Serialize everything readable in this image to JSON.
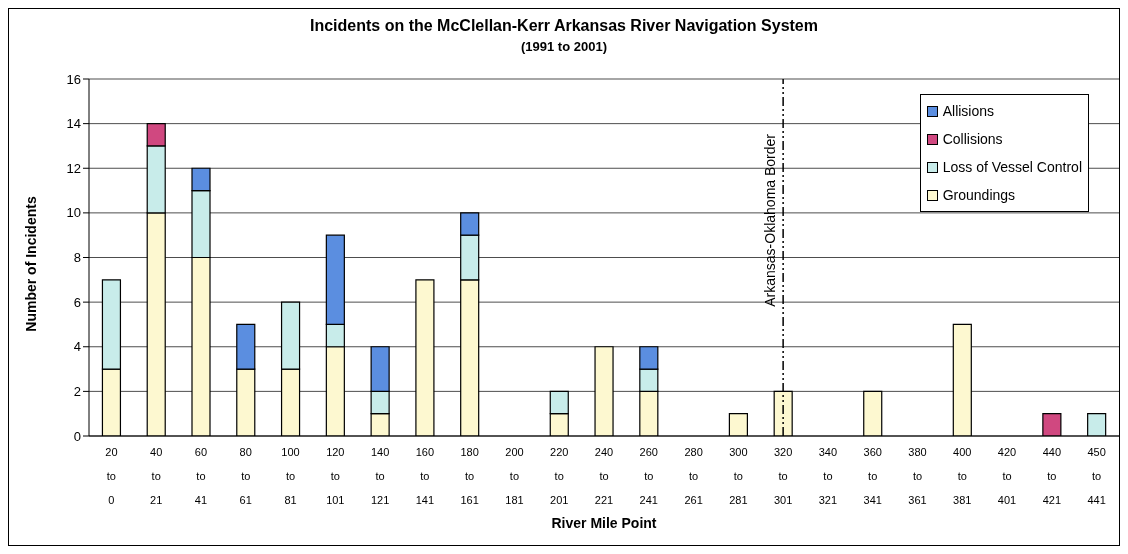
{
  "chart_data": {
    "type": "bar",
    "title": "Incidents on the McClellan-Kerr Arkansas River Navigation System",
    "subtitle": "(1991 to 2001)",
    "xlabel": "River Mile Point",
    "ylabel": "Number of Incidents",
    "categories": [
      "20 to 0",
      "40 to 21",
      "60 to 41",
      "80 to 61",
      "100 to 81",
      "120 to 101",
      "140 to 121",
      "160 to 141",
      "180 to 161",
      "200 to 181",
      "220 to 201",
      "240 to 221",
      "260 to 241",
      "280 to 261",
      "300 to 281",
      "320 to 301",
      "340 to 321",
      "360 to 341",
      "380 to 361",
      "400 to 381",
      "420 to 401",
      "440 to 421",
      "450 to 441"
    ],
    "series": [
      {
        "name": "Groundings",
        "color": "#fdf8d0",
        "values": [
          3,
          10,
          8,
          3,
          3,
          4,
          1,
          7,
          7,
          0,
          1,
          4,
          2,
          0,
          1,
          2,
          0,
          2,
          0,
          5,
          0,
          0,
          0
        ]
      },
      {
        "name": "Loss of Vessel Control",
        "color": "#c8ecea",
        "values": [
          4,
          3,
          3,
          0,
          3,
          1,
          1,
          0,
          2,
          0,
          1,
          0,
          1,
          0,
          0,
          0,
          0,
          0,
          0,
          0,
          0,
          0,
          1
        ]
      },
      {
        "name": "Collisions",
        "color": "#d04880",
        "values": [
          0,
          1,
          0,
          0,
          0,
          0,
          0,
          0,
          0,
          0,
          0,
          0,
          0,
          0,
          0,
          0,
          0,
          0,
          0,
          0,
          0,
          1,
          0
        ]
      },
      {
        "name": "Allisions",
        "color": "#5b8ee0",
        "values": [
          0,
          0,
          1,
          2,
          0,
          4,
          2,
          0,
          1,
          0,
          0,
          0,
          1,
          0,
          0,
          0,
          0,
          0,
          0,
          0,
          0,
          0,
          0
        ]
      }
    ],
    "stacked": true,
    "ylim": [
      0,
      16
    ],
    "yticks": [
      0,
      2,
      4,
      6,
      8,
      10,
      12,
      14,
      16
    ],
    "grid": "y",
    "legend": "top right",
    "ref_lines": [
      {
        "axis": "x",
        "value": "320 to 301",
        "label": "Arkansas-Oklahoma Border",
        "line_style": "dashed"
      }
    ]
  }
}
